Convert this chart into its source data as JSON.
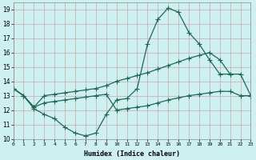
{
  "title": "",
  "xlabel": "Humidex (Indice chaleur)",
  "ylabel": "",
  "xlim": [
    0,
    23
  ],
  "ylim": [
    10,
    19.5
  ],
  "yticks": [
    10,
    11,
    12,
    13,
    14,
    15,
    16,
    17,
    18,
    19
  ],
  "xticks": [
    0,
    1,
    2,
    3,
    4,
    5,
    6,
    7,
    8,
    9,
    10,
    11,
    12,
    13,
    14,
    15,
    16,
    17,
    18,
    19,
    20,
    21,
    22,
    23
  ],
  "xtick_labels": [
    "0",
    "1",
    "2",
    "3",
    "4",
    "5",
    "6",
    "7",
    "8",
    "9",
    "10",
    "11",
    "12",
    "13",
    "14",
    "15",
    "16",
    "17",
    "18",
    "19",
    "20",
    "21",
    "22",
    "23"
  ],
  "bg_color": "#cff0f0",
  "grid_color": "#c8a8a8",
  "line_color": "#206655",
  "line1_x": [
    0,
    1,
    2,
    3,
    4,
    5,
    6,
    7,
    8,
    9,
    10,
    11,
    12,
    13,
    14,
    15,
    16,
    17,
    18,
    19,
    20,
    21
  ],
  "line1_y": [
    13.5,
    13.0,
    12.1,
    11.7,
    11.4,
    10.8,
    10.4,
    10.2,
    10.4,
    11.7,
    12.7,
    12.8,
    13.5,
    16.6,
    18.3,
    19.1,
    18.8,
    17.4,
    16.6,
    15.5,
    14.5,
    14.5
  ],
  "line2_x": [
    0,
    1,
    2,
    3,
    4,
    5,
    6,
    7,
    8,
    9,
    10,
    11,
    12,
    13,
    14,
    15,
    16,
    17,
    18,
    19,
    20,
    21,
    22,
    23
  ],
  "line2_y": [
    13.5,
    13.0,
    12.2,
    13.0,
    13.1,
    13.2,
    13.3,
    13.4,
    13.5,
    13.7,
    14.0,
    14.2,
    14.4,
    14.6,
    14.85,
    15.1,
    15.35,
    15.6,
    15.8,
    16.0,
    15.5,
    14.5,
    14.5,
    13.0
  ],
  "line3_x": [
    0,
    1,
    2,
    3,
    4,
    5,
    6,
    7,
    8,
    9,
    10,
    11,
    12,
    13,
    14,
    15,
    16,
    17,
    18,
    19,
    20,
    21,
    22,
    23
  ],
  "line3_y": [
    13.5,
    13.0,
    12.2,
    12.5,
    12.6,
    12.7,
    12.8,
    12.9,
    13.0,
    13.1,
    12.0,
    12.1,
    12.2,
    12.3,
    12.5,
    12.7,
    12.85,
    13.0,
    13.1,
    13.2,
    13.3,
    13.3,
    13.0,
    13.0
  ],
  "marker": "+",
  "markersize": 3,
  "linewidth": 0.9
}
